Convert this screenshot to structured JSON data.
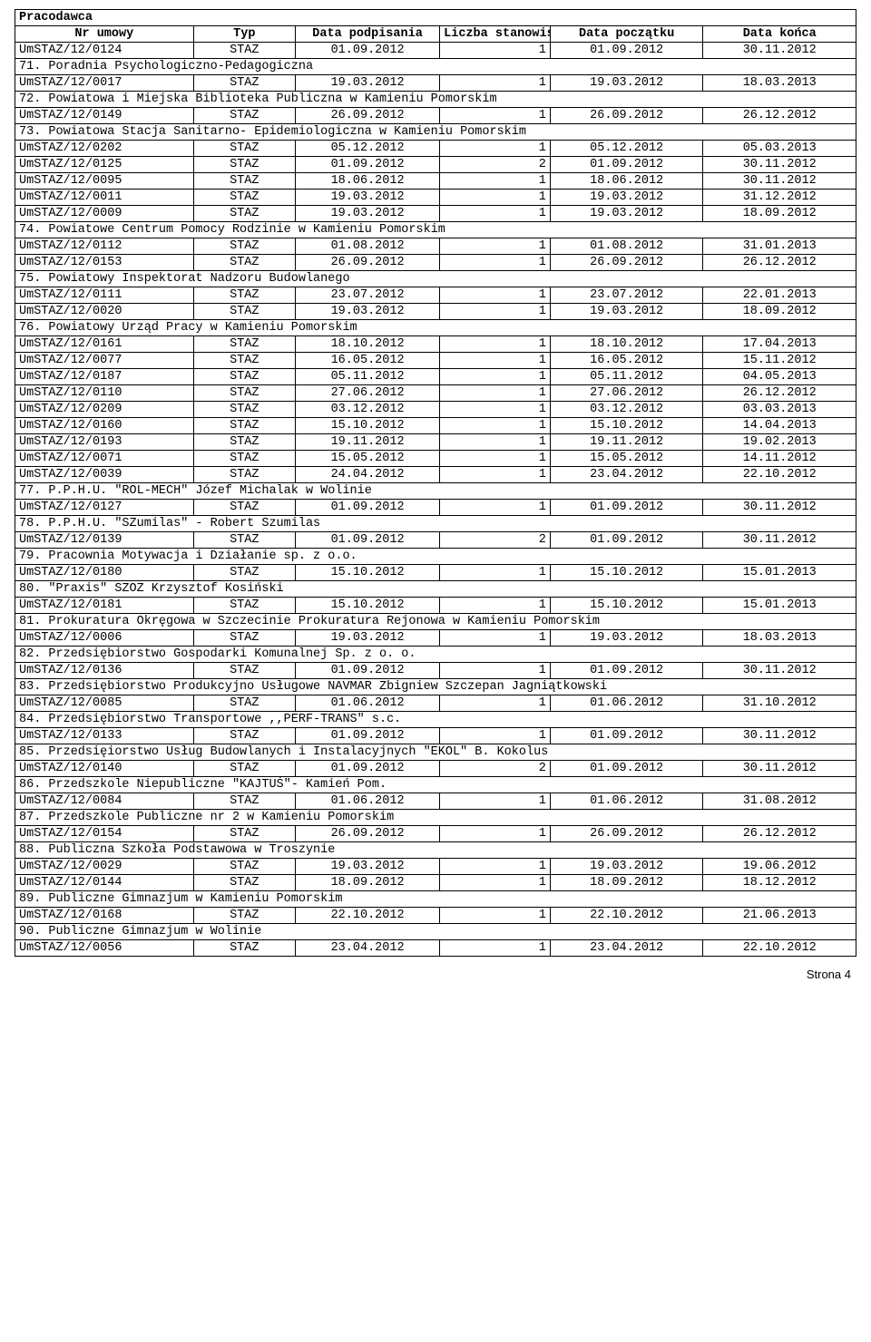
{
  "header": {
    "title": "Pracodawca",
    "cols": [
      "Nr umowy",
      "Typ",
      "Data podpisania",
      "Liczba stanowisk",
      "Data początku",
      "Data końca"
    ]
  },
  "rows": [
    {
      "t": "data",
      "c": [
        "UmSTAZ/12/0124",
        "STAZ",
        "01.09.2012",
        "1",
        "01.09.2012",
        "30.11.2012"
      ]
    },
    {
      "t": "section",
      "label": "71. Poradnia Psychologiczno-Pedagogiczna"
    },
    {
      "t": "data",
      "c": [
        "UmSTAZ/12/0017",
        "STAZ",
        "19.03.2012",
        "1",
        "19.03.2012",
        "18.03.2013"
      ]
    },
    {
      "t": "section",
      "label": "72. Powiatowa i Miejska Biblioteka Publiczna w Kamieniu Pomorskim"
    },
    {
      "t": "data",
      "c": [
        "UmSTAZ/12/0149",
        "STAZ",
        "26.09.2012",
        "1",
        "26.09.2012",
        "26.12.2012"
      ]
    },
    {
      "t": "section",
      "label": "73. Powiatowa Stacja Sanitarno- Epidemiologiczna w Kamieniu Pomorskim"
    },
    {
      "t": "data",
      "c": [
        "UmSTAZ/12/0202",
        "STAZ",
        "05.12.2012",
        "1",
        "05.12.2012",
        "05.03.2013"
      ]
    },
    {
      "t": "data",
      "c": [
        "UmSTAZ/12/0125",
        "STAZ",
        "01.09.2012",
        "2",
        "01.09.2012",
        "30.11.2012"
      ]
    },
    {
      "t": "data",
      "c": [
        "UmSTAZ/12/0095",
        "STAZ",
        "18.06.2012",
        "1",
        "18.06.2012",
        "30.11.2012"
      ]
    },
    {
      "t": "data",
      "c": [
        "UmSTAZ/12/0011",
        "STAZ",
        "19.03.2012",
        "1",
        "19.03.2012",
        "31.12.2012"
      ]
    },
    {
      "t": "data",
      "c": [
        "UmSTAZ/12/0009",
        "STAZ",
        "19.03.2012",
        "1",
        "19.03.2012",
        "18.09.2012"
      ]
    },
    {
      "t": "section",
      "label": "74. Powiatowe Centrum Pomocy Rodzinie w Kamieniu Pomorskim"
    },
    {
      "t": "data",
      "c": [
        "UmSTAZ/12/0112",
        "STAZ",
        "01.08.2012",
        "1",
        "01.08.2012",
        "31.01.2013"
      ]
    },
    {
      "t": "data",
      "c": [
        "UmSTAZ/12/0153",
        "STAZ",
        "26.09.2012",
        "1",
        "26.09.2012",
        "26.12.2012"
      ]
    },
    {
      "t": "section",
      "label": "75. Powiatowy Inspektorat Nadzoru Budowlanego"
    },
    {
      "t": "data",
      "c": [
        "UmSTAZ/12/0111",
        "STAZ",
        "23.07.2012",
        "1",
        "23.07.2012",
        "22.01.2013"
      ]
    },
    {
      "t": "data",
      "c": [
        "UmSTAZ/12/0020",
        "STAZ",
        "19.03.2012",
        "1",
        "19.03.2012",
        "18.09.2012"
      ]
    },
    {
      "t": "section",
      "label": "76. Powiatowy Urząd Pracy w Kamieniu Pomorskim"
    },
    {
      "t": "data",
      "c": [
        "UmSTAZ/12/0161",
        "STAZ",
        "18.10.2012",
        "1",
        "18.10.2012",
        "17.04.2013"
      ]
    },
    {
      "t": "data",
      "c": [
        "UmSTAZ/12/0077",
        "STAZ",
        "16.05.2012",
        "1",
        "16.05.2012",
        "15.11.2012"
      ]
    },
    {
      "t": "data",
      "c": [
        "UmSTAZ/12/0187",
        "STAZ",
        "05.11.2012",
        "1",
        "05.11.2012",
        "04.05.2013"
      ]
    },
    {
      "t": "data",
      "c": [
        "UmSTAZ/12/0110",
        "STAZ",
        "27.06.2012",
        "1",
        "27.06.2012",
        "26.12.2012"
      ]
    },
    {
      "t": "data",
      "c": [
        "UmSTAZ/12/0209",
        "STAZ",
        "03.12.2012",
        "1",
        "03.12.2012",
        "03.03.2013"
      ]
    },
    {
      "t": "data",
      "c": [
        "UmSTAZ/12/0160",
        "STAZ",
        "15.10.2012",
        "1",
        "15.10.2012",
        "14.04.2013"
      ]
    },
    {
      "t": "data",
      "c": [
        "UmSTAZ/12/0193",
        "STAZ",
        "19.11.2012",
        "1",
        "19.11.2012",
        "19.02.2013"
      ]
    },
    {
      "t": "data",
      "c": [
        "UmSTAZ/12/0071",
        "STAZ",
        "15.05.2012",
        "1",
        "15.05.2012",
        "14.11.2012"
      ]
    },
    {
      "t": "data",
      "c": [
        "UmSTAZ/12/0039",
        "STAZ",
        "24.04.2012",
        "1",
        "23.04.2012",
        "22.10.2012"
      ]
    },
    {
      "t": "section",
      "label": "77. P.P.H.U.  \"ROL-MECH\" Józef Michalak w Wolinie"
    },
    {
      "t": "data",
      "c": [
        "UmSTAZ/12/0127",
        "STAZ",
        "01.09.2012",
        "1",
        "01.09.2012",
        "30.11.2012"
      ]
    },
    {
      "t": "section",
      "label": "78. P.P.H.U. \"SZumilas\" - Robert Szumilas"
    },
    {
      "t": "data",
      "c": [
        "UmSTAZ/12/0139",
        "STAZ",
        "01.09.2012",
        "2",
        "01.09.2012",
        "30.11.2012"
      ]
    },
    {
      "t": "section",
      "label": "79. Pracownia Motywacja i Działanie sp. z o.o."
    },
    {
      "t": "data",
      "c": [
        "UmSTAZ/12/0180",
        "STAZ",
        "15.10.2012",
        "1",
        "15.10.2012",
        "15.01.2013"
      ]
    },
    {
      "t": "section",
      "label": "80. \"Praxis\" SZOZ Krzysztof Kosiński"
    },
    {
      "t": "data",
      "c": [
        "UmSTAZ/12/0181",
        "STAZ",
        "15.10.2012",
        "1",
        "15.10.2012",
        "15.01.2013"
      ]
    },
    {
      "t": "section",
      "label": "81. Prokuratura Okręgowa w Szczecinie Prokuratura Rejonowa w Kamieniu Pomorskim"
    },
    {
      "t": "data",
      "c": [
        "UmSTAZ/12/0006",
        "STAZ",
        "19.03.2012",
        "1",
        "19.03.2012",
        "18.03.2013"
      ]
    },
    {
      "t": "section",
      "label": "82. Przedsiębiorstwo Gospodarki Komunalnej Sp. z o. o."
    },
    {
      "t": "data",
      "c": [
        "UmSTAZ/12/0136",
        "STAZ",
        "01.09.2012",
        "1",
        "01.09.2012",
        "30.11.2012"
      ]
    },
    {
      "t": "section",
      "label": "83. Przedsiębiorstwo Produkcyjno Usługowe NAVMAR Zbigniew Szczepan Jagniątkowski"
    },
    {
      "t": "data",
      "c": [
        "UmSTAZ/12/0085",
        "STAZ",
        "01.06.2012",
        "1",
        "01.06.2012",
        "31.10.2012"
      ]
    },
    {
      "t": "section",
      "label": "84. Przedsiębiorstwo Transportowe ,,PERF-TRANS\" s.c."
    },
    {
      "t": "data",
      "c": [
        "UmSTAZ/12/0133",
        "STAZ",
        "01.09.2012",
        "1",
        "01.09.2012",
        "30.11.2012"
      ]
    },
    {
      "t": "section",
      "label": "85. Przedsięiorstwo Usług Budowlanych i Instalacyjnych \"EKOL\" B. Kokolus"
    },
    {
      "t": "data",
      "c": [
        "UmSTAZ/12/0140",
        "STAZ",
        "01.09.2012",
        "2",
        "01.09.2012",
        "30.11.2012"
      ]
    },
    {
      "t": "section",
      "label": "86. Przedszkole Niepubliczne \"KAJTUŚ\"- Kamień Pom."
    },
    {
      "t": "data",
      "c": [
        "UmSTAZ/12/0084",
        "STAZ",
        "01.06.2012",
        "1",
        "01.06.2012",
        "31.08.2012"
      ]
    },
    {
      "t": "section",
      "label": "87. Przedszkole Publiczne nr 2 w Kamieniu Pomorskim"
    },
    {
      "t": "data",
      "c": [
        "UmSTAZ/12/0154",
        "STAZ",
        "26.09.2012",
        "1",
        "26.09.2012",
        "26.12.2012"
      ]
    },
    {
      "t": "section",
      "label": "88. Publiczna Szkoła Podstawowa w Troszynie"
    },
    {
      "t": "data",
      "c": [
        "UmSTAZ/12/0029",
        "STAZ",
        "19.03.2012",
        "1",
        "19.03.2012",
        "19.06.2012"
      ]
    },
    {
      "t": "data",
      "c": [
        "UmSTAZ/12/0144",
        "STAZ",
        "18.09.2012",
        "1",
        "18.09.2012",
        "18.12.2012"
      ]
    },
    {
      "t": "section",
      "label": "89. Publiczne Gimnazjum w Kamieniu Pomorskim"
    },
    {
      "t": "data",
      "c": [
        "UmSTAZ/12/0168",
        "STAZ",
        "22.10.2012",
        "1",
        "22.10.2012",
        "21.06.2013"
      ]
    },
    {
      "t": "section",
      "label": "90. Publiczne Gimnazjum w Wolinie"
    },
    {
      "t": "data",
      "c": [
        "UmSTAZ/12/0056",
        "STAZ",
        "23.04.2012",
        "1",
        "23.04.2012",
        "22.10.2012"
      ]
    }
  ],
  "footer": "Strona 4"
}
